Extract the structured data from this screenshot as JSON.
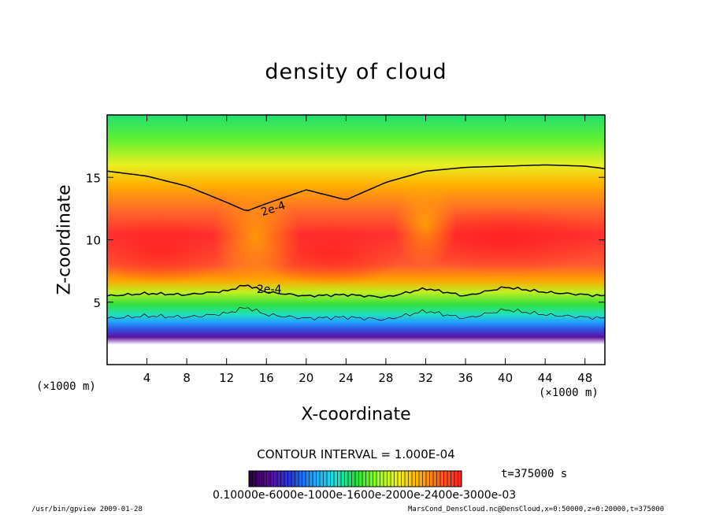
{
  "chart_data": {
    "type": "heatmap",
    "title": "density of cloud",
    "xlabel": "X-coordinate",
    "ylabel": "Z-coordinate",
    "x_unit": "(×1000 m)",
    "y_unit": "(×1000 m)",
    "xlim": [
      0,
      50
    ],
    "ylim": [
      0,
      20
    ],
    "xticks": [
      4,
      8,
      12,
      16,
      20,
      24,
      28,
      32,
      36,
      40,
      44,
      48
    ],
    "yticks": [
      5,
      10,
      15
    ],
    "contour_interval": "CONTOUR INTERVAL = 1.000E-04",
    "contour_labels": [
      "2e-4",
      "2e-4"
    ],
    "upper_contour_2e4": {
      "x": [
        0,
        4,
        8,
        12,
        14,
        16,
        20,
        24,
        28,
        32,
        36,
        40,
        44,
        48,
        50
      ],
      "z": [
        15.5,
        15.1,
        14.3,
        13.0,
        12.3,
        12.9,
        14.0,
        13.2,
        14.6,
        15.5,
        15.8,
        15.9,
        16.0,
        15.9,
        15.7
      ]
    },
    "lower_contour_2e4": {
      "x": [
        0,
        4,
        8,
        12,
        14,
        16,
        20,
        24,
        28,
        32,
        36,
        40,
        44,
        48,
        50
      ],
      "z": [
        5.5,
        5.7,
        5.6,
        5.9,
        6.4,
        5.8,
        5.5,
        5.6,
        5.4,
        6.1,
        5.5,
        6.2,
        5.8,
        5.6,
        5.5
      ]
    },
    "colorbar": {
      "tick_text": "0.10000e-6000e-1000e-1600e-2000e-2400e-3000e-03",
      "colors": [
        "#2a003a",
        "#5a0aa0",
        "#2040e0",
        "#20a0ff",
        "#20e0e0",
        "#20e040",
        "#90ff20",
        "#f0f020",
        "#ffb000",
        "#ff6020",
        "#ff2020"
      ]
    },
    "time": "t=375000 s"
  },
  "footer": {
    "left": "/usr/bin/gpview  2009-01-28",
    "right": "MarsCond_DensCloud.nc@DensCloud,x=0:50000,z=0:20000,t=375000"
  }
}
